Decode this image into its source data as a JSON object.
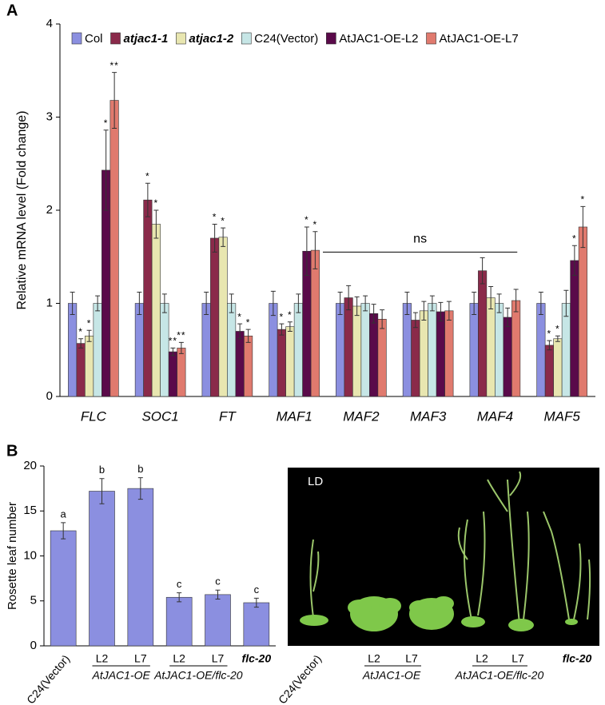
{
  "chart_data": [
    {
      "type": "bar",
      "panel": "A",
      "y_label": "Relative mRNA level (Fold change)",
      "categories": [
        "FLC",
        "SOC1",
        "FT",
        "MAF1",
        "MAF2",
        "MAF3",
        "MAF4",
        "MAF5"
      ],
      "ylim": [
        0,
        4
      ],
      "yticks": [
        0,
        1,
        2,
        3,
        4
      ],
      "annotation": "ns",
      "series": [
        {
          "name": "Col",
          "color": "#8b8fe0",
          "values": [
            1.0,
            1.0,
            1.0,
            1.0,
            1.0,
            1.0,
            1.0,
            1.0
          ],
          "errors": [
            0.12,
            0.12,
            0.12,
            0.13,
            0.12,
            0.12,
            0.12,
            0.12
          ],
          "significance": [
            null,
            null,
            null,
            null,
            null,
            null,
            null,
            null
          ]
        },
        {
          "name": "atjac1-1",
          "color": "#8a2a4a",
          "values": [
            0.57,
            2.11,
            1.7,
            0.72,
            1.06,
            0.82,
            1.35,
            0.55
          ],
          "errors": [
            0.05,
            0.18,
            0.15,
            0.06,
            0.13,
            0.08,
            0.14,
            0.05
          ],
          "significance": [
            "*",
            "*",
            "*",
            "*",
            null,
            null,
            null,
            "*"
          ]
        },
        {
          "name": "atjac1-2",
          "color": "#e8e6b0",
          "values": [
            0.65,
            1.85,
            1.71,
            0.75,
            0.97,
            0.92,
            1.06,
            0.62
          ],
          "errors": [
            0.06,
            0.15,
            0.1,
            0.05,
            0.1,
            0.1,
            0.12,
            0.03
          ],
          "significance": [
            "*",
            "*",
            "*",
            "*",
            null,
            null,
            null,
            "*"
          ]
        },
        {
          "name": "C24(Vector)",
          "color": "#c6e6e6",
          "values": [
            1.0,
            1.0,
            1.0,
            1.0,
            1.0,
            1.0,
            1.0,
            1.0
          ],
          "errors": [
            0.08,
            0.1,
            0.1,
            0.1,
            0.08,
            0.08,
            0.1,
            0.14
          ],
          "significance": [
            null,
            null,
            null,
            null,
            null,
            null,
            null,
            null
          ]
        },
        {
          "name": "AtJAC1-OE-L2",
          "color": "#5a0a4a",
          "values": [
            2.43,
            0.48,
            0.7,
            1.56,
            0.89,
            0.91,
            0.85,
            1.46
          ],
          "errors": [
            0.43,
            0.04,
            0.08,
            0.26,
            0.1,
            0.1,
            0.1,
            0.16
          ],
          "significance": [
            "*",
            "**",
            "*",
            "*",
            null,
            null,
            null,
            "*"
          ]
        },
        {
          "name": "AtJAC1-OE-L7",
          "color": "#e07a6e",
          "values": [
            3.18,
            0.52,
            0.65,
            1.57,
            0.83,
            0.92,
            1.03,
            1.82
          ],
          "errors": [
            0.3,
            0.06,
            0.07,
            0.2,
            0.1,
            0.1,
            0.12,
            0.22
          ],
          "significance": [
            "**",
            "**",
            "*",
            "*",
            null,
            null,
            null,
            "*"
          ]
        }
      ]
    },
    {
      "type": "bar",
      "panel": "B",
      "y_label": "Rosette leaf number",
      "categories": [
        "C24(Vector)",
        "L2",
        "L7",
        "L2",
        "L7",
        "flc-20"
      ],
      "group_labels": [
        "AtJAC1-OE",
        "AtJAC1-OE/flc-20"
      ],
      "ylim": [
        0,
        20
      ],
      "yticks": [
        0,
        5,
        10,
        15,
        20
      ],
      "series": [
        {
          "color": "#8b8fe0",
          "values": [
            12.8,
            17.2,
            17.5,
            5.4,
            5.7,
            4.8
          ],
          "errors": [
            0.9,
            1.4,
            1.2,
            0.5,
            0.5,
            0.5
          ],
          "significance": [
            "a",
            "b",
            "b",
            "c",
            "c",
            "c"
          ]
        }
      ]
    }
  ],
  "photo": {
    "condition": "LD",
    "labels": [
      "C24(Vector)",
      "L2",
      "L7",
      "AtJAC1-OE",
      "L2",
      "L7",
      "AtJAC1-OE/flc-20",
      "flc-20"
    ]
  }
}
